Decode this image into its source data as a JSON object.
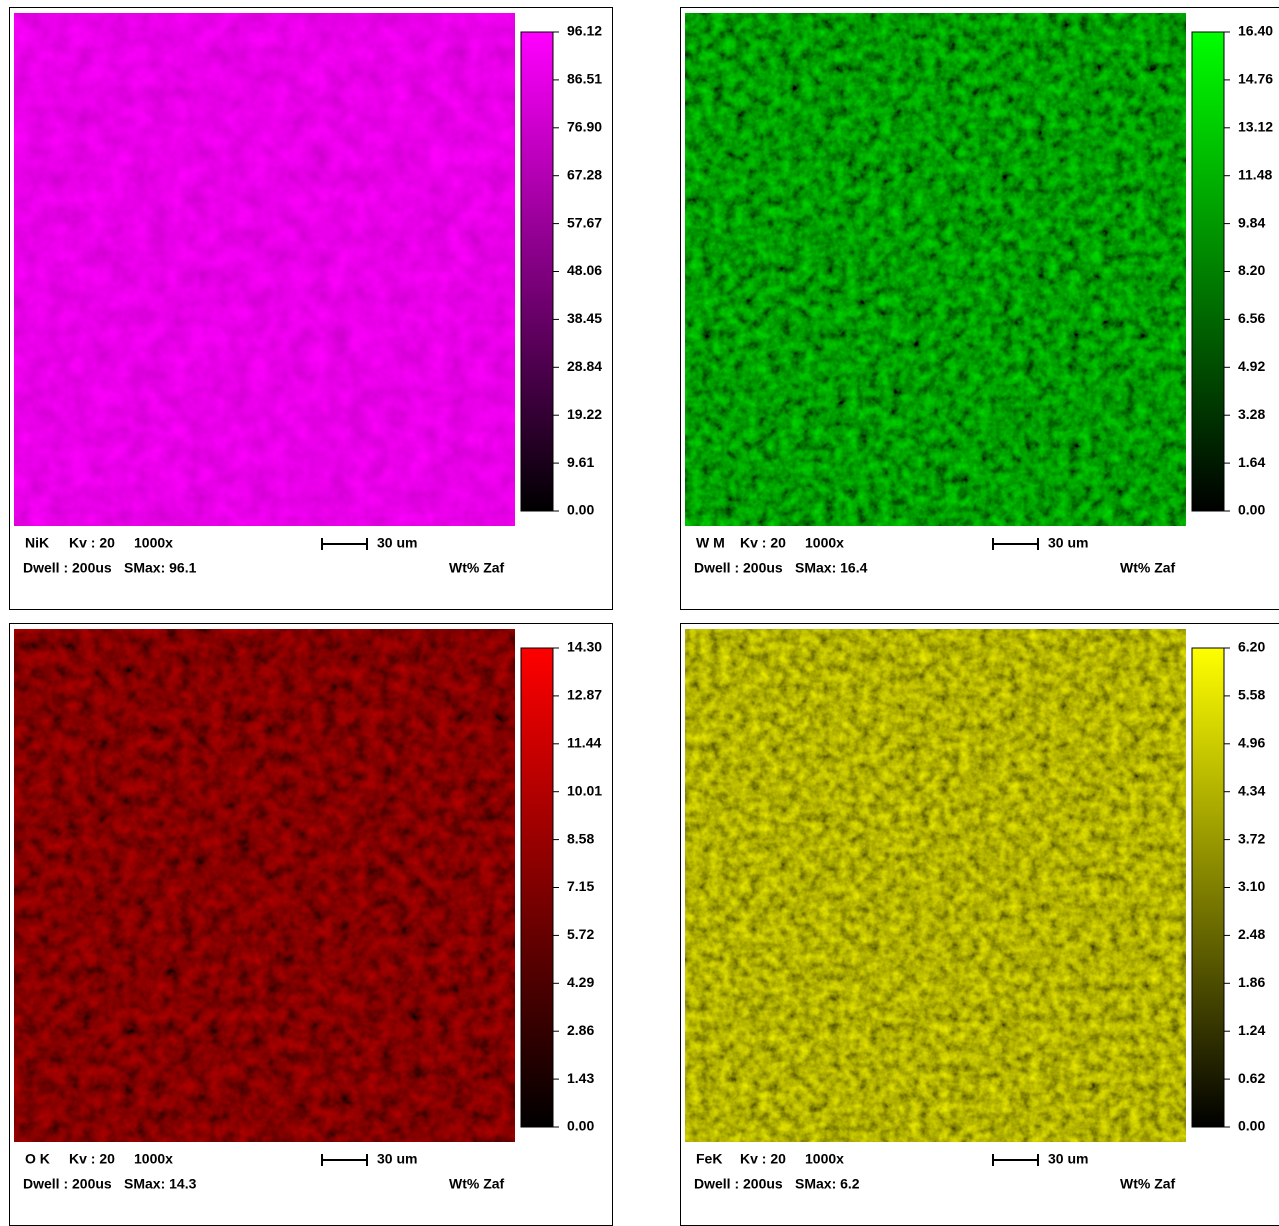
{
  "panels": [
    {
      "element": "NiK",
      "kv": "Kv : 20",
      "magnification": "1000x",
      "scale_bar": "30 um",
      "dwell": "Dwell : 200us",
      "smax": "SMax: 96.1",
      "units": "Wt% Zaf",
      "color": "#ff00ff",
      "colorbar_ticks": [
        "96.12",
        "86.51",
        "76.90",
        "67.28",
        "57.67",
        "48.06",
        "38.45",
        "28.84",
        "19.22",
        "9.61",
        "0.00"
      ]
    },
    {
      "element": "W M",
      "kv": "Kv : 20",
      "magnification": "1000x",
      "scale_bar": "30 um",
      "dwell": "Dwell : 200us",
      "smax": "SMax: 16.4",
      "units": "Wt% Zaf",
      "color": "#00ff00",
      "colorbar_ticks": [
        "16.40",
        "14.76",
        "13.12",
        "11.48",
        "9.84",
        "8.20",
        "6.56",
        "4.92",
        "3.28",
        "1.64",
        "0.00"
      ]
    },
    {
      "element": "O K",
      "kv": "Kv : 20",
      "magnification": "1000x",
      "scale_bar": "30 um",
      "dwell": "Dwell : 200us",
      "smax": "SMax: 14.3",
      "units": "Wt% Zaf",
      "color": "#ff0000",
      "colorbar_ticks": [
        "14.30",
        "12.87",
        "11.44",
        "10.01",
        "8.58",
        "7.15",
        "5.72",
        "4.29",
        "2.86",
        "1.43",
        "0.00"
      ]
    },
    {
      "element": "FeK",
      "kv": "Kv : 20",
      "magnification": "1000x",
      "scale_bar": "30 um",
      "dwell": "Dwell : 200us",
      "smax": "SMax: 6.2",
      "units": "Wt% Zaf",
      "color": "#ffff00",
      "colorbar_ticks": [
        "6.20",
        "5.58",
        "4.96",
        "4.34",
        "3.72",
        "3.10",
        "2.48",
        "1.86",
        "1.24",
        "0.62",
        "0.00"
      ]
    }
  ]
}
